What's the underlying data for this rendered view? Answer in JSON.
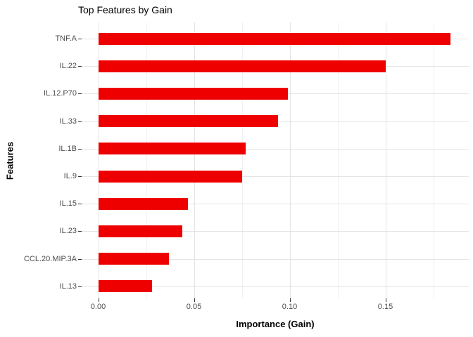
{
  "title": "Top Features by Gain",
  "x_axis": {
    "label": "Importance (Gain)",
    "tick_labels": [
      "0.00",
      "0.05",
      "0.10",
      "0.15"
    ]
  },
  "y_axis": {
    "label": "Features"
  },
  "chart_data": {
    "type": "bar",
    "orientation": "horizontal",
    "title": "Top Features by Gain",
    "xlabel": "Importance (Gain)",
    "ylabel": "Features",
    "categories": [
      "TNF.A",
      "IL.22",
      "IL.12.P70",
      "IL.33",
      "IL.1B",
      "IL.9",
      "IL.15",
      "IL.23",
      "CCL.20.MIP.3A",
      "IL.13"
    ],
    "values": [
      0.184,
      0.15,
      0.099,
      0.094,
      0.077,
      0.075,
      0.047,
      0.044,
      0.037,
      0.028
    ],
    "xlim": [
      0,
      0.19
    ],
    "x_major_ticks": [
      0.0,
      0.05,
      0.1,
      0.15
    ],
    "x_minor_ticks": [
      0.025,
      0.075,
      0.125,
      0.175
    ],
    "bar_color": "#ee0000",
    "grid": true,
    "legend": false,
    "background": "#ffffff",
    "grid_major_color": "#e4e4e4",
    "grid_minor_color": "#f0f0f0",
    "tick_label_color": "#4d4d4d"
  }
}
